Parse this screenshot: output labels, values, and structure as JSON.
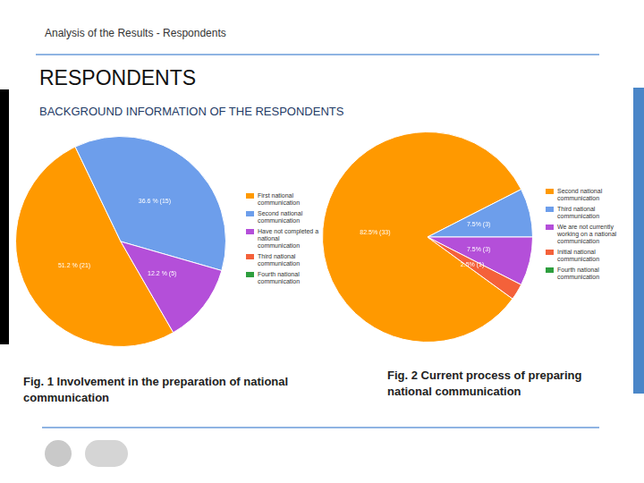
{
  "header": "Analysis of the Results - Respondents",
  "title": "RESPONDENTS",
  "subtitle": "BACKGROUND INFORMATION OF THE RESPONDENTS",
  "chart_data": [
    {
      "type": "pie",
      "caption": "Fig. 1 Involvement in the preparation of national communication",
      "categories": [
        "First national communication",
        "Second national communication",
        "Have not completed a national communication",
        "Third national communication",
        "Fourth national communication"
      ],
      "values": [
        51.2,
        36.6,
        12.2,
        0,
        0
      ],
      "value_labels": [
        "51.2 % (21)",
        "36.6 % (15)",
        "12.2 % (5)",
        null,
        null
      ],
      "colors": [
        "#ff9900",
        "#6d9eeb",
        "#b44fd9",
        "#f4613a",
        "#2e9e3e"
      ],
      "legend": "right",
      "data_labels": true
    },
    {
      "type": "pie",
      "caption": "Fig. 2 Current process of preparing national communication",
      "categories": [
        "Second national communication",
        "Third national communication",
        "We are not currently working on a national communication",
        "Initial national communication",
        "Fourth national communication"
      ],
      "values": [
        82.5,
        7.5,
        7.5,
        2.5,
        0
      ],
      "value_labels": [
        "82.5% (33)",
        "7.5% (3)",
        "7.5% (3)",
        "2.5% (1)",
        null
      ],
      "colors": [
        "#ff9900",
        "#6d9eeb",
        "#b44fd9",
        "#f4613a",
        "#2e9e3e"
      ],
      "legend": "right",
      "data_labels": true
    }
  ]
}
